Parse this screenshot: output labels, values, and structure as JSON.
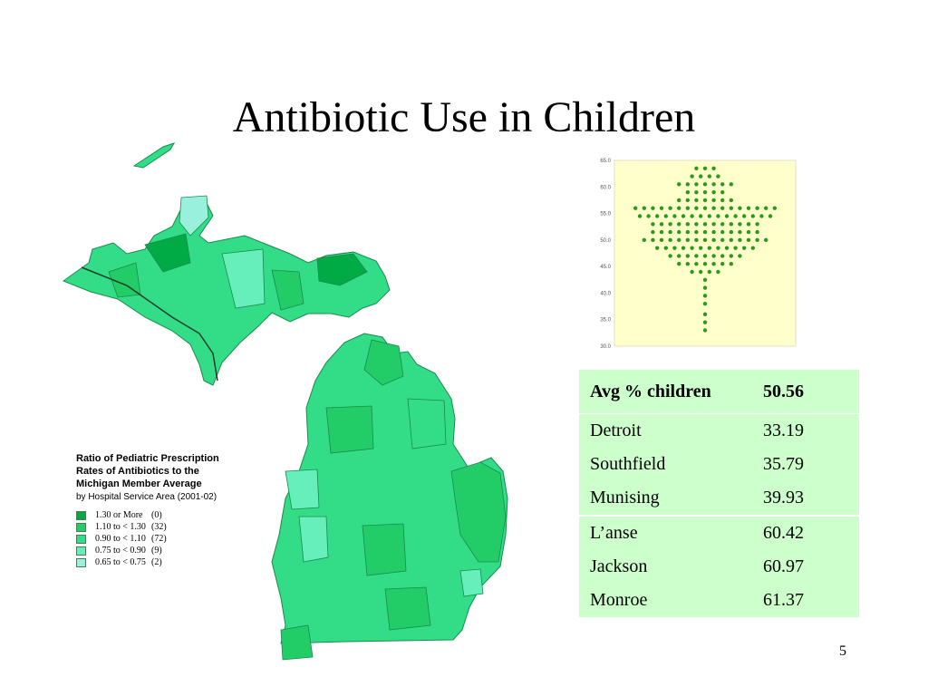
{
  "title": "Antibiotic Use in Children",
  "page_number": "5",
  "colors": {
    "cat1": "#00aa44",
    "cat2": "#22cc66",
    "cat3": "#33dd88",
    "cat4": "#66eebb",
    "cat5": "#99f0dd",
    "table_bg": "#ccffcc",
    "plot_bg": "#ffffcc",
    "dot": "#2a9a1a"
  },
  "legend": {
    "title_lines": [
      "Ratio of Pediatric Prescription",
      "Rates of Antibiotics to the",
      "Michigan Member Average"
    ],
    "subtitle": "by Hospital Service Area (2001-02)",
    "items": [
      {
        "label": "1.30 or More",
        "count": "(0)",
        "color": "#00aa44"
      },
      {
        "label": "1.10 to < 1.30",
        "count": "(32)",
        "color": "#22cc66"
      },
      {
        "label": "0.90 to < 1.10",
        "count": "(72)",
        "color": "#33dd88"
      },
      {
        "label": "0.75 to < 0.90",
        "count": "(9)",
        "color": "#66eebb"
      },
      {
        "label": "0.65 to < 0.75",
        "count": "(2)",
        "color": "#99f0dd"
      }
    ]
  },
  "chart_data": {
    "type": "scatter",
    "title": "",
    "xlabel": "",
    "ylabel": "",
    "ylim": [
      30.0,
      65.0
    ],
    "ytick_labels": [
      "65.0",
      "60.0",
      "55.0",
      "50.0",
      "45.0",
      "40.0",
      "35.0",
      "30.0"
    ],
    "rows": [
      {
        "y": 63.5,
        "count": 3
      },
      {
        "y": 62.0,
        "count": 4
      },
      {
        "y": 60.5,
        "count": 7
      },
      {
        "y": 59.0,
        "count": 5
      },
      {
        "y": 57.5,
        "count": 7
      },
      {
        "y": 56.0,
        "count": 17
      },
      {
        "y": 54.5,
        "count": 16
      },
      {
        "y": 53.0,
        "count": 13
      },
      {
        "y": 51.5,
        "count": 13
      },
      {
        "y": 50.0,
        "count": 15
      },
      {
        "y": 48.5,
        "count": 12
      },
      {
        "y": 47.0,
        "count": 9
      },
      {
        "y": 45.5,
        "count": 7
      },
      {
        "y": 44.0,
        "count": 4
      },
      {
        "y": 42.5,
        "count": 1
      },
      {
        "y": 41.0,
        "count": 1
      },
      {
        "y": 39.5,
        "count": 1
      },
      {
        "y": 38.0,
        "count": 1
      },
      {
        "y": 36.0,
        "count": 1
      },
      {
        "y": 34.5,
        "count": 1
      },
      {
        "y": 33.0,
        "count": 1
      }
    ]
  },
  "stats_table": {
    "header": {
      "name": "Avg % children",
      "value": "50.56"
    },
    "group1": [
      {
        "name": "Detroit",
        "value": "33.19"
      },
      {
        "name": "Southfield",
        "value": "35.79"
      },
      {
        "name": "Munising",
        "value": "39.93"
      }
    ],
    "group2": [
      {
        "name": "L’anse",
        "value": "60.42"
      },
      {
        "name": "Jackson",
        "value": "60.97"
      },
      {
        "name": "Monroe",
        "value": "61.37"
      }
    ]
  }
}
